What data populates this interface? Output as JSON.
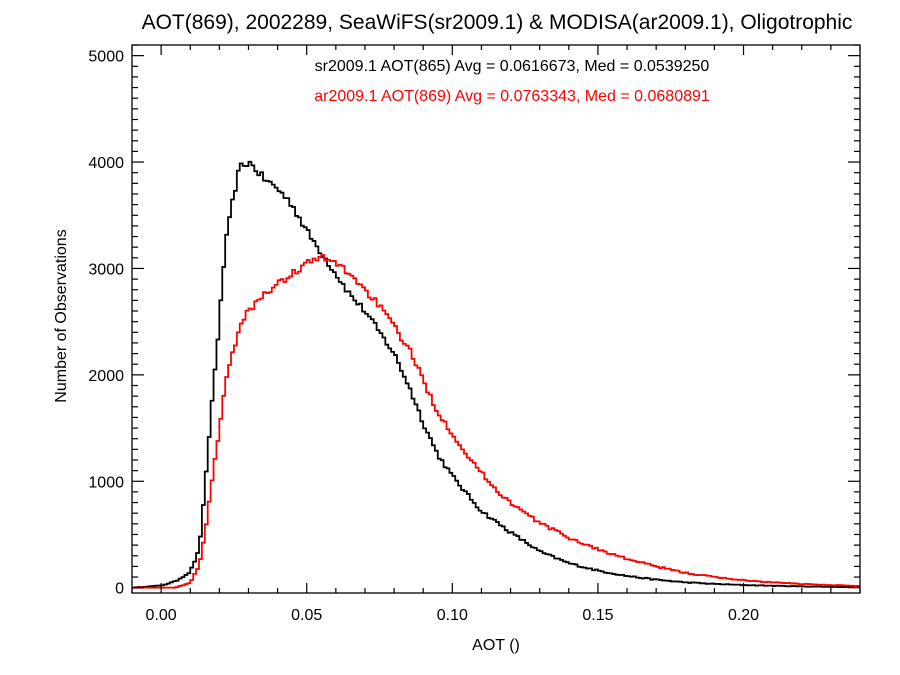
{
  "chart_data": {
    "type": "line",
    "title": "AOT(869), 2002289, SeaWiFS(sr2009.1) & MODISA(ar2009.1), Oligotrophic",
    "xlabel": "AOT ()",
    "ylabel": "Number of Observations",
    "xlim": [
      -0.01,
      0.24
    ],
    "ylim": [
      -50,
      5100
    ],
    "x_ticks": [
      0.0,
      0.05,
      0.1,
      0.15,
      0.2
    ],
    "x_tick_labels": [
      "0.00",
      "0.05",
      "0.10",
      "0.15",
      "0.20"
    ],
    "y_ticks": [
      0,
      1000,
      2000,
      3000,
      4000,
      5000
    ],
    "y_tick_labels": [
      "0",
      "1000",
      "2000",
      "3000",
      "4000",
      "5000"
    ],
    "grid": false,
    "step_style": "histogram",
    "annotations": [
      {
        "text": "sr2009.1 AOT(865) Avg = 0.0616673, Med = 0.0539250",
        "color": "#000000"
      },
      {
        "text": "ar2009.1 AOT(869) Avg = 0.0763343, Med = 0.0680891",
        "color": "#ff0000"
      }
    ],
    "series": [
      {
        "color": "#000000",
        "x": [
          -0.01,
          0.0,
          0.005,
          0.01,
          0.013,
          0.015,
          0.017,
          0.02,
          0.022,
          0.025,
          0.027,
          0.03,
          0.032,
          0.035,
          0.04,
          0.045,
          0.05,
          0.055,
          0.06,
          0.065,
          0.07,
          0.075,
          0.08,
          0.085,
          0.09,
          0.095,
          0.1,
          0.105,
          0.11,
          0.115,
          0.12,
          0.125,
          0.13,
          0.14,
          0.15,
          0.16,
          0.17,
          0.18,
          0.19,
          0.2,
          0.21,
          0.22,
          0.23,
          0.24
        ],
        "y": [
          0,
          20,
          60,
          150,
          350,
          900,
          1600,
          2500,
          3200,
          3700,
          3950,
          4000,
          3950,
          3850,
          3750,
          3600,
          3350,
          3150,
          2950,
          2750,
          2600,
          2400,
          2200,
          1900,
          1550,
          1250,
          1050,
          880,
          720,
          620,
          520,
          430,
          340,
          230,
          160,
          110,
          75,
          50,
          35,
          25,
          18,
          12,
          8,
          5
        ]
      },
      {
        "color": "#ff0000",
        "x": [
          -0.01,
          0.005,
          0.01,
          0.013,
          0.015,
          0.017,
          0.02,
          0.022,
          0.025,
          0.027,
          0.03,
          0.035,
          0.04,
          0.045,
          0.05,
          0.055,
          0.06,
          0.065,
          0.07,
          0.075,
          0.08,
          0.085,
          0.09,
          0.095,
          0.1,
          0.105,
          0.11,
          0.115,
          0.12,
          0.125,
          0.13,
          0.14,
          0.15,
          0.16,
          0.17,
          0.18,
          0.19,
          0.2,
          0.21,
          0.22,
          0.23,
          0.24
        ],
        "y": [
          0,
          0,
          50,
          200,
          500,
          900,
          1500,
          1900,
          2250,
          2450,
          2600,
          2750,
          2850,
          2950,
          3050,
          3100,
          3050,
          2950,
          2800,
          2650,
          2450,
          2250,
          1950,
          1650,
          1450,
          1250,
          1080,
          920,
          800,
          700,
          610,
          470,
          360,
          270,
          200,
          140,
          100,
          70,
          50,
          35,
          25,
          15
        ]
      }
    ]
  }
}
